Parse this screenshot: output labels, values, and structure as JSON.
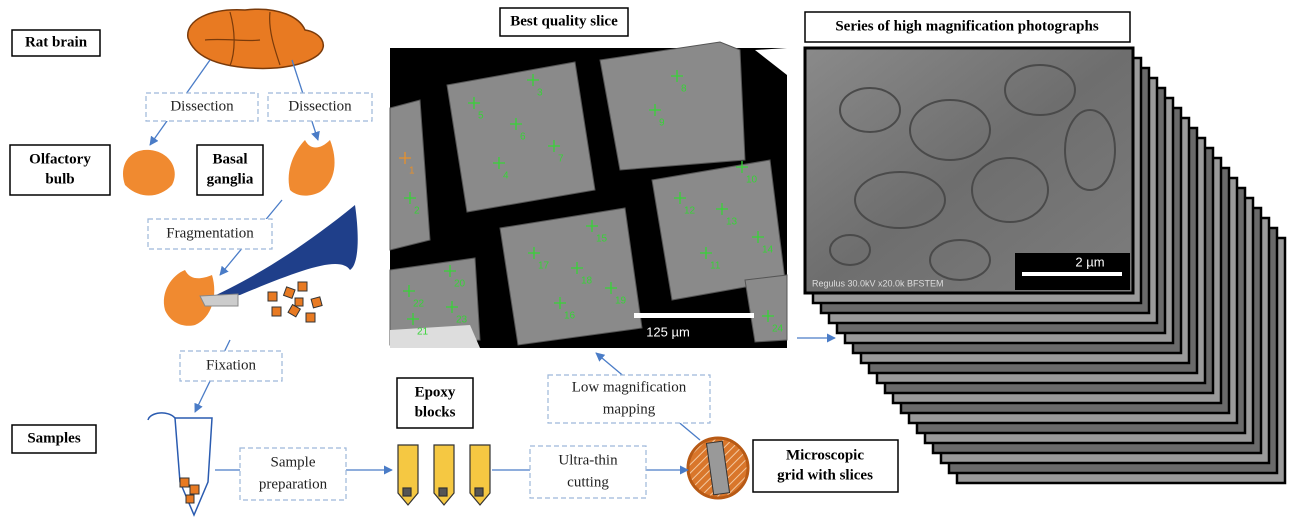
{
  "nodes": [
    {
      "lines": [
        "Rat brain"
      ]
    },
    {
      "lines": [
        "Olfactory",
        "bulb"
      ]
    },
    {
      "lines": [
        "Basal",
        "ganglia"
      ]
    },
    {
      "lines": [
        "Samples"
      ]
    },
    {
      "lines": [
        "Epoxy",
        "blocks"
      ]
    },
    {
      "lines": [
        "Microscopic",
        "grid with slices"
      ]
    },
    {
      "lines": [
        "Best quality slice"
      ]
    },
    {
      "lines": [
        "Series of high magnification photographs"
      ]
    }
  ],
  "steps": [
    {
      "lines": [
        "Dissection"
      ]
    },
    {
      "lines": [
        "Dissection"
      ]
    },
    {
      "lines": [
        "Fragmentation"
      ]
    },
    {
      "lines": [
        "Fixation"
      ]
    },
    {
      "lines": [
        "Sample",
        "preparation"
      ]
    },
    {
      "lines": [
        "Ultra-thin",
        "cutting"
      ]
    },
    {
      "lines": [
        "Low magnification",
        "mapping"
      ]
    }
  ],
  "slice_image": {
    "scale_bar": "125 µm",
    "markers": [
      "1",
      "2",
      "3",
      "4",
      "5",
      "6",
      "7",
      "8",
      "9",
      "10",
      "11",
      "12",
      "13",
      "14",
      "15",
      "16",
      "17",
      "18",
      "19",
      "20",
      "21",
      "22",
      "23",
      "24"
    ]
  },
  "photo_image": {
    "scale_bar": "2 µm",
    "caption": "Regulus 30.0kV x20.0k BFSTEM"
  }
}
